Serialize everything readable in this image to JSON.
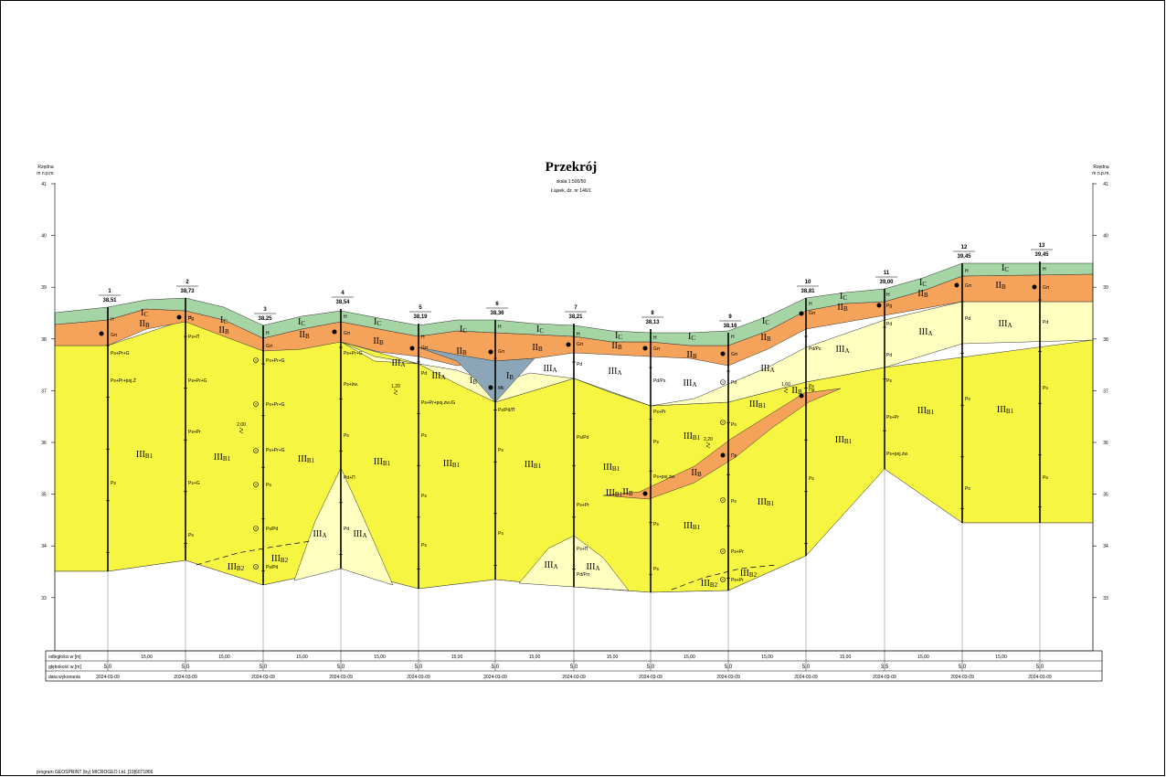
{
  "title": "Przekrój",
  "subtitle_scale": "skala 1:500/50",
  "subtitle_location": "Łajsek, dz. nr 146/1",
  "axis_label_left": [
    "Rzędna",
    "m n.p.m."
  ],
  "axis_label_right": [
    "Rzędna",
    "m n.p.m."
  ],
  "axis_ticks": [
    "41",
    "40",
    "39",
    "38",
    "37",
    "36",
    "35",
    "34",
    "33"
  ],
  "boreholes": [
    {
      "num": "1",
      "elev": "38,51"
    },
    {
      "num": "2",
      "elev": "38,73"
    },
    {
      "num": "3",
      "elev": "38,25"
    },
    {
      "num": "4",
      "elev": "38,54"
    },
    {
      "num": "5",
      "elev": "38,19"
    },
    {
      "num": "6",
      "elev": "38,36"
    },
    {
      "num": "7",
      "elev": "38,21"
    },
    {
      "num": "8",
      "elev": "38,13"
    },
    {
      "num": "9",
      "elev": "38,16"
    },
    {
      "num": "10",
      "elev": "38,81"
    },
    {
      "num": "11",
      "elev": "39,00"
    },
    {
      "num": "12",
      "elev": "39,45"
    },
    {
      "num": "13",
      "elev": "39,45"
    }
  ],
  "layer_labels": [
    {
      "main": "I",
      "sub": "C"
    },
    {
      "main": "II",
      "sub": "B"
    },
    {
      "main": "III",
      "sub": "A"
    },
    {
      "main": "III",
      "sub": "B1"
    },
    {
      "main": "III",
      "sub": "B2"
    },
    {
      "main": "I",
      "sub": "B"
    }
  ],
  "soil_labels": [
    "H",
    "Gπ",
    "Pg",
    "Ps+Pr+G",
    "Ps+Pr+poj.Ż",
    "Ps+Π",
    "Ps+Pr",
    "Ps+G",
    "Ps",
    "Ps/Pd",
    "Pd",
    "Pd+Π",
    "Ps+żw.",
    "Ps+Pr+poj.żw./G",
    "Mk",
    "Ps/Pd/Π",
    "Ps+Π",
    "Pd/Pπ",
    "Pd/Ps",
    "Ps+poj.żw.",
    "Πp"
  ],
  "water_levels": [
    "2,00",
    "1,20",
    "2,20",
    "1,60"
  ],
  "table": {
    "row_labels": [
      "odległości w [m]",
      "głębokość w [m]",
      "data wykonania"
    ],
    "distances": [
      "15,00",
      "15,00",
      "15,00",
      "15,00",
      "15,00",
      "15,00",
      "15,00",
      "15,00",
      "15,00",
      "15,00",
      "15,00",
      "15,00"
    ],
    "depths": [
      "5,0",
      "5,0",
      "5,0",
      "5,0",
      "5,0",
      "5,0",
      "5,0",
      "5,0",
      "5,0",
      "5,0",
      "3,5",
      "5,0",
      "5,0"
    ],
    "dates": [
      "2024-03-09",
      "2024-03-09",
      "2024-03-09",
      "2024-03-09",
      "2024-03-09",
      "2024-03-09",
      "2024-03-09",
      "2024-03-09",
      "2024-03-09",
      "2024-03-09",
      "2024-03-09",
      "2024-03-09",
      "2024-03-09"
    ]
  },
  "footer": "program GEOSPRINT (by) MICROGEO Ltd. [19]6071866",
  "colors": {
    "ic": "#a5d4a5",
    "iib": "#f5a35a",
    "iiia": "#ffffc0",
    "iiib1": "#f5f542",
    "ib": "#8aa6b8",
    "white": "#ffffff"
  }
}
